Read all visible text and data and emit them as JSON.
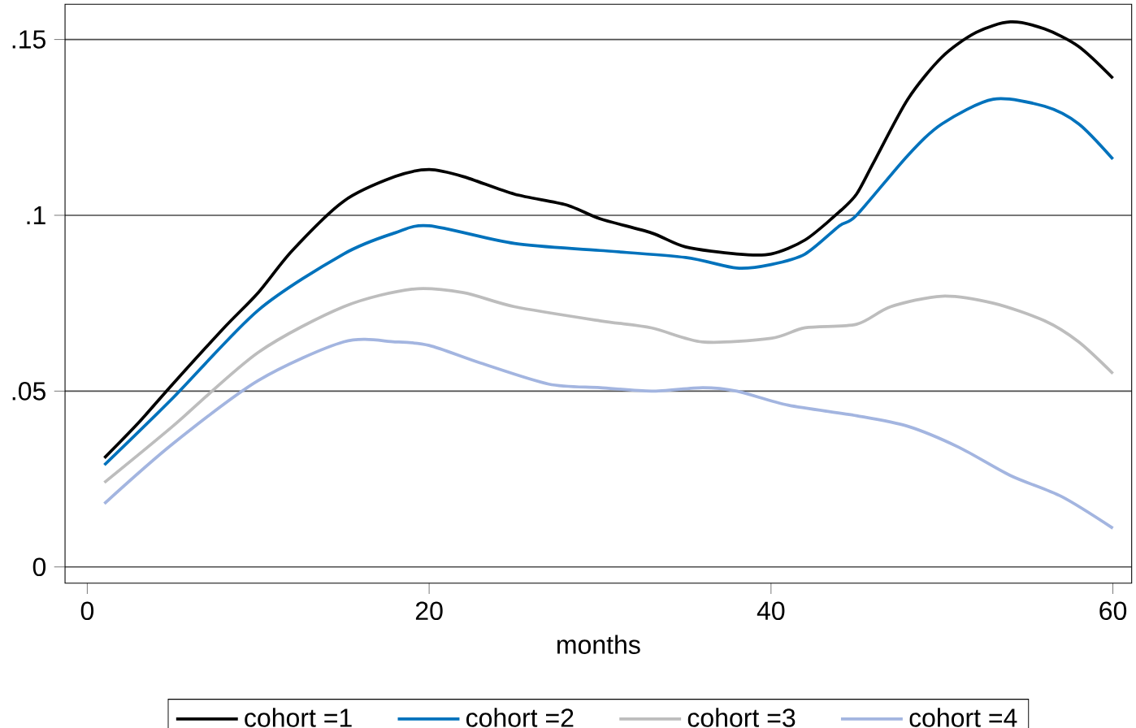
{
  "chart_data": {
    "type": "line",
    "xlabel": "months",
    "xlim": [
      -1.3,
      61.1
    ],
    "ylim": [
      -0.0046,
      0.16
    ],
    "xticks": [
      0,
      20,
      40,
      60
    ],
    "yticks": [
      {
        "value": 0,
        "label": "0"
      },
      {
        "value": 0.05,
        "label": ".05"
      },
      {
        "value": 0.1,
        "label": ".1"
      },
      {
        "value": 0.15,
        "label": ".15"
      }
    ],
    "grid": "y",
    "legend": "bottom",
    "line_style": "solid",
    "series": [
      {
        "name": "cohort =1",
        "color": "#000000",
        "x": [
          1,
          3,
          5,
          8,
          10,
          12,
          15,
          18,
          20,
          22,
          25,
          28,
          30,
          33,
          35,
          38,
          40,
          42,
          44,
          45,
          46,
          48,
          50,
          52,
          54,
          56,
          58,
          60
        ],
        "values": [
          0.031,
          0.041,
          0.052,
          0.068,
          0.078,
          0.09,
          0.104,
          0.111,
          0.113,
          0.111,
          0.106,
          0.103,
          0.099,
          0.095,
          0.091,
          0.089,
          0.089,
          0.093,
          0.101,
          0.106,
          0.115,
          0.133,
          0.145,
          0.152,
          0.155,
          0.153,
          0.148,
          0.139
        ]
      },
      {
        "name": "cohort =2",
        "color": "#0072bc",
        "x": [
          1,
          5,
          10,
          15,
          18,
          20,
          25,
          30,
          35,
          38,
          40,
          42,
          44,
          45,
          48,
          50,
          53,
          56,
          58,
          60
        ],
        "values": [
          0.029,
          0.048,
          0.073,
          0.089,
          0.095,
          0.097,
          0.092,
          0.09,
          0.088,
          0.085,
          0.086,
          0.089,
          0.097,
          0.1,
          0.117,
          0.126,
          0.133,
          0.131,
          0.126,
          0.116
        ]
      },
      {
        "name": "cohort =3",
        "color": "#bdbdbd",
        "x": [
          1,
          5,
          10,
          15,
          19,
          22,
          25,
          30,
          33,
          36,
          40,
          42,
          45,
          47,
          50,
          53,
          56,
          58,
          60
        ],
        "values": [
          0.024,
          0.04,
          0.061,
          0.074,
          0.079,
          0.078,
          0.074,
          0.07,
          0.068,
          0.064,
          0.065,
          0.068,
          0.069,
          0.074,
          0.077,
          0.075,
          0.07,
          0.064,
          0.055
        ]
      },
      {
        "name": "cohort =4",
        "color": "#a3b5e0",
        "x": [
          1,
          5,
          10,
          15,
          18,
          20,
          23,
          27,
          30,
          33,
          36,
          38,
          41,
          45,
          48,
          51,
          54,
          57,
          60
        ],
        "values": [
          0.018,
          0.035,
          0.053,
          0.064,
          0.064,
          0.063,
          0.058,
          0.052,
          0.051,
          0.05,
          0.051,
          0.05,
          0.046,
          0.043,
          0.04,
          0.034,
          0.026,
          0.02,
          0.011
        ]
      }
    ]
  }
}
